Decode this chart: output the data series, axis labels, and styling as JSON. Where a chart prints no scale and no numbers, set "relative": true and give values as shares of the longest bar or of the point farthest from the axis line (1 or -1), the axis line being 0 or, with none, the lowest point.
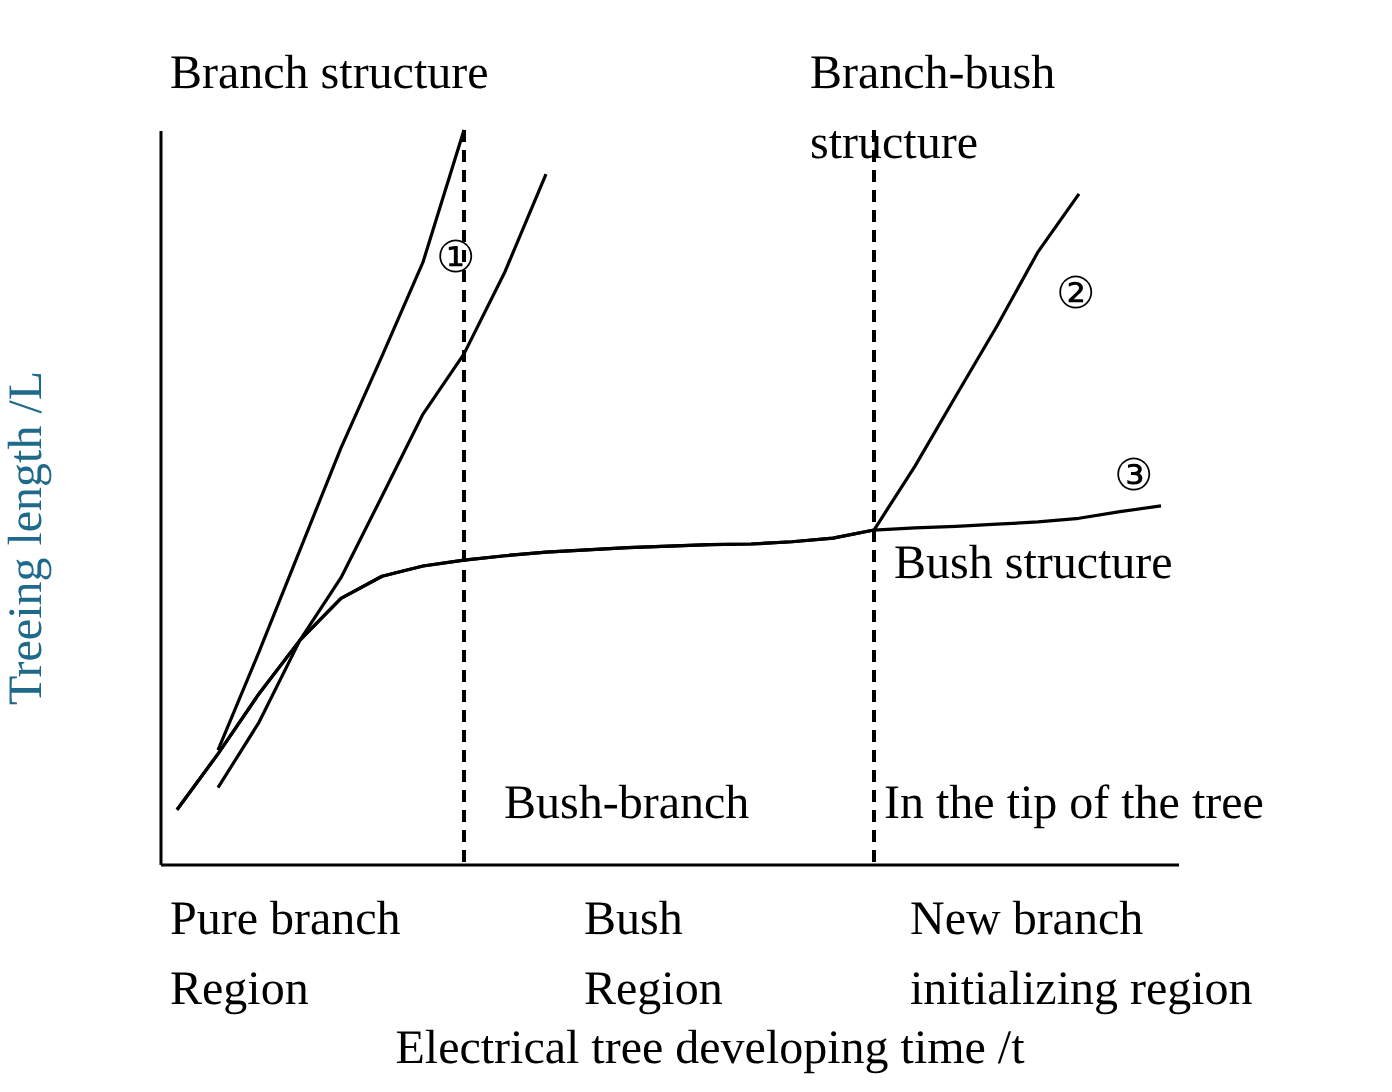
{
  "chart_data": {
    "type": "line",
    "relative": true,
    "tick_labels": false,
    "marker": "none",
    "line_style": "solid",
    "xlabel": "Electrical tree developing time /t",
    "ylabel": "Treeing length /L",
    "categories": [
      null,
      null,
      null,
      null,
      null,
      null,
      null,
      null,
      null,
      null,
      null,
      null,
      null,
      null,
      null,
      null,
      null,
      null,
      null,
      null,
      null,
      null,
      null,
      null,
      null
    ],
    "series": [
      {
        "color": "#000000",
        "values": [
          null,
          0.155,
          0.289,
          0.428,
          0.567,
          0.692,
          0.82,
          1.0,
          null,
          null,
          null,
          null,
          null,
          null,
          null,
          null,
          null,
          null,
          null,
          null,
          null,
          null,
          null,
          null,
          null
        ]
      },
      {
        "color": "#000000",
        "values": [
          null,
          0.104,
          0.193,
          0.305,
          0.39,
          0.501,
          0.613,
          0.695,
          0.807,
          0.94,
          null,
          null,
          null,
          null,
          null,
          null,
          null,
          null,
          null,
          null,
          null,
          null,
          null,
          null,
          null
        ]
      },
      {
        "color": "#000000",
        "values": [
          0.074,
          0.15,
          0.232,
          0.305,
          0.362,
          0.392,
          0.406,
          0.414,
          0.42,
          0.425,
          0.428,
          0.431,
          0.433,
          0.435,
          0.436,
          0.439,
          0.444,
          0.455,
          0.542,
          0.638,
          0.733,
          0.834,
          0.913,
          null,
          null
        ]
      },
      {
        "color": "#000000",
        "values": [
          0.074,
          0.15,
          0.232,
          0.305,
          0.362,
          0.392,
          0.406,
          0.414,
          0.42,
          0.425,
          0.428,
          0.431,
          0.433,
          0.435,
          0.436,
          0.439,
          0.444,
          0.455,
          0.458,
          0.46,
          0.463,
          0.466,
          0.471,
          0.48,
          0.488
        ]
      }
    ],
    "annotations": [
      "Branch structure",
      "Branch-bush\nstructure",
      "Bush structure",
      "Bush-branch",
      "In the tip of the tree",
      "Pure branch\nRegion",
      "Bush\nRegion",
      "New branch\ninitializing region",
      "①",
      "②",
      "③"
    ]
  }
}
